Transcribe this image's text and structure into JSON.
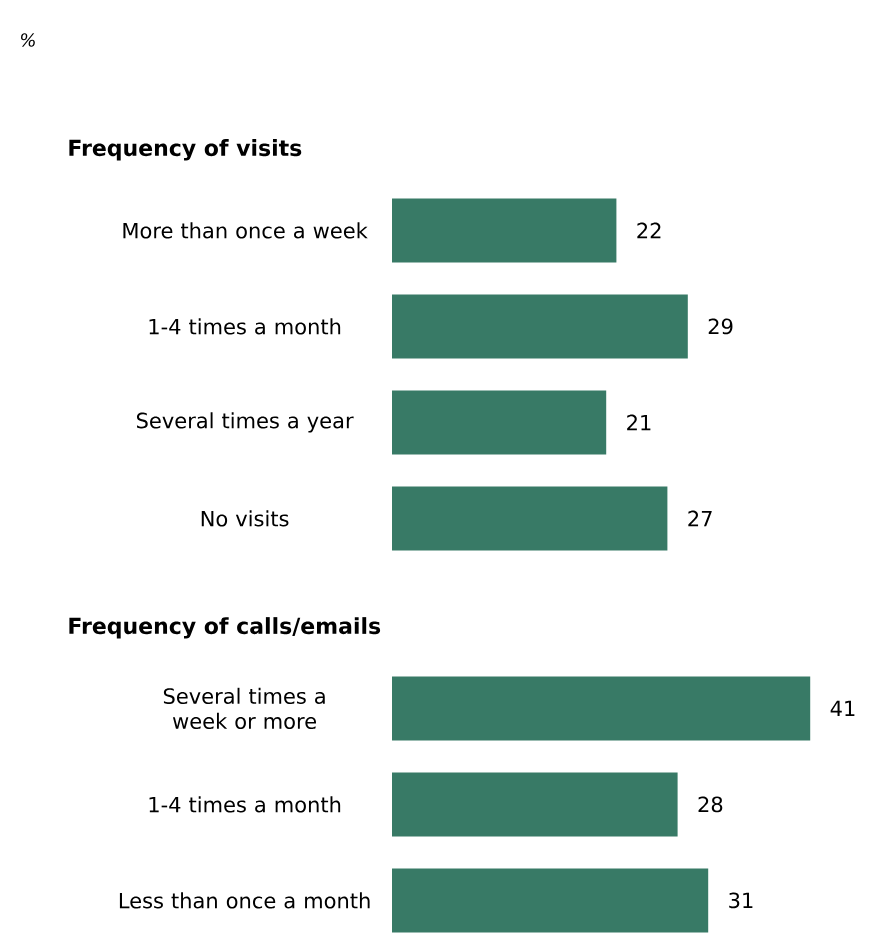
{
  "chart_data": [
    {
      "type": "bar",
      "orientation": "horizontal",
      "title": "Frequency of visits",
      "annotations": [
        "%"
      ],
      "categories": [
        "More than once a week",
        "1-4 times a month",
        "Several times a year",
        "No visits"
      ],
      "values": [
        22,
        29,
        21,
        27
      ],
      "color": "#387a66",
      "data_labels": true
    },
    {
      "type": "bar",
      "orientation": "horizontal",
      "title": "Frequency of calls/emails",
      "categories": [
        "Several times a week or more",
        "1-4 times a month",
        "Less than once a month"
      ],
      "values": [
        41,
        28,
        31
      ],
      "color": "#387a66",
      "data_labels": true
    }
  ]
}
